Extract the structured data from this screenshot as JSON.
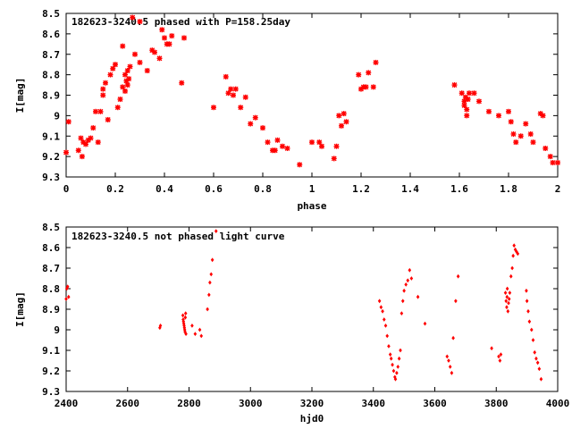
{
  "chart_data": [
    {
      "type": "scatter",
      "title": "182623-3240.5 phased with P=158.25day",
      "xlabel": "phase",
      "ylabel": "I[mag]",
      "xlim": [
        0,
        2
      ],
      "ylim": [
        9.3,
        8.5
      ],
      "y_inverted": true,
      "grid": false,
      "marker": "star",
      "color": "#ff0000",
      "x_ticks": [
        "0",
        "0.2",
        "0.4",
        "0.6",
        "0.8",
        "1",
        "1.2",
        "1.4",
        "1.6",
        "1.8",
        "2"
      ],
      "y_ticks": [
        "8.5",
        "8.6",
        "8.7",
        "8.8",
        "8.9",
        "9",
        "9.1",
        "9.2",
        "9.3"
      ],
      "series": [
        {
          "points": [
            [
              0.0,
              9.18
            ],
            [
              0.01,
              9.03
            ],
            [
              0.05,
              9.17
            ],
            [
              0.06,
              9.11
            ],
            [
              0.065,
              9.2
            ],
            [
              0.07,
              9.13
            ],
            [
              0.08,
              9.14
            ],
            [
              0.09,
              9.12
            ],
            [
              0.1,
              9.11
            ],
            [
              0.11,
              9.06
            ],
            [
              0.12,
              8.98
            ],
            [
              0.13,
              9.13
            ],
            [
              0.14,
              8.98
            ],
            [
              0.15,
              8.9
            ],
            [
              0.15,
              8.87
            ],
            [
              0.16,
              8.84
            ],
            [
              0.17,
              9.02
            ],
            [
              0.18,
              8.8
            ],
            [
              0.19,
              8.77
            ],
            [
              0.2,
              8.75
            ],
            [
              0.21,
              8.96
            ],
            [
              0.22,
              8.92
            ],
            [
              0.23,
              8.86
            ],
            [
              0.23,
              8.66
            ],
            [
              0.24,
              8.8
            ],
            [
              0.24,
              8.88
            ],
            [
              0.245,
              8.83
            ],
            [
              0.25,
              8.78
            ],
            [
              0.25,
              8.85
            ],
            [
              0.255,
              8.82
            ],
            [
              0.26,
              8.76
            ],
            [
              0.28,
              8.7
            ],
            [
              0.27,
              8.52
            ],
            [
              0.3,
              8.74
            ],
            [
              0.3,
              8.54
            ],
            [
              0.33,
              8.78
            ],
            [
              0.35,
              8.68
            ],
            [
              0.36,
              8.69
            ],
            [
              0.38,
              8.72
            ],
            [
              0.39,
              8.58
            ],
            [
              0.4,
              8.62
            ],
            [
              0.41,
              8.65
            ],
            [
              0.42,
              8.65
            ],
            [
              0.43,
              8.61
            ],
            [
              0.47,
              8.84
            ],
            [
              0.48,
              8.62
            ],
            [
              0.6,
              8.96
            ],
            [
              0.65,
              8.81
            ],
            [
              0.66,
              8.89
            ],
            [
              0.67,
              8.87
            ],
            [
              0.68,
              8.9
            ],
            [
              0.69,
              8.87
            ],
            [
              0.71,
              8.96
            ],
            [
              0.73,
              8.91
            ],
            [
              0.75,
              9.04
            ],
            [
              0.77,
              9.01
            ],
            [
              0.8,
              9.06
            ],
            [
              0.82,
              9.13
            ],
            [
              0.84,
              9.17
            ],
            [
              0.85,
              9.17
            ],
            [
              0.86,
              9.12
            ],
            [
              0.88,
              9.15
            ],
            [
              0.9,
              9.16
            ],
            [
              0.95,
              9.24
            ],
            [
              1.0,
              9.13
            ],
            [
              1.03,
              9.13
            ],
            [
              1.04,
              9.15
            ],
            [
              1.09,
              9.21
            ],
            [
              1.1,
              9.15
            ],
            [
              1.11,
              9.0
            ],
            [
              1.12,
              9.05
            ],
            [
              1.13,
              8.99
            ],
            [
              1.14,
              9.03
            ],
            [
              1.19,
              8.8
            ],
            [
              1.2,
              8.87
            ],
            [
              1.21,
              8.86
            ],
            [
              1.22,
              8.86
            ],
            [
              1.23,
              8.79
            ],
            [
              1.25,
              8.86
            ],
            [
              1.26,
              8.74
            ],
            [
              1.58,
              8.85
            ],
            [
              1.61,
              8.89
            ],
            [
              1.62,
              8.93
            ],
            [
              1.62,
              8.95
            ],
            [
              1.625,
              8.91
            ],
            [
              1.63,
              8.97
            ],
            [
              1.63,
              9.0
            ],
            [
              1.635,
              8.92
            ],
            [
              1.64,
              8.89
            ],
            [
              1.66,
              8.89
            ],
            [
              1.68,
              8.93
            ],
            [
              1.72,
              8.98
            ],
            [
              1.76,
              9.0
            ],
            [
              1.8,
              8.98
            ],
            [
              1.81,
              9.03
            ],
            [
              1.82,
              9.09
            ],
            [
              1.83,
              9.13
            ],
            [
              1.85,
              9.1
            ],
            [
              1.87,
              9.04
            ],
            [
              1.89,
              9.09
            ],
            [
              1.9,
              9.13
            ],
            [
              1.93,
              8.99
            ],
            [
              1.94,
              9.0
            ],
            [
              1.95,
              9.16
            ],
            [
              1.97,
              9.2
            ],
            [
              1.98,
              9.23
            ],
            [
              2.0,
              9.23
            ]
          ]
        }
      ]
    },
    {
      "type": "scatter",
      "title": "182623-3240.5 not phased light curve",
      "xlabel": "hjd0",
      "ylabel": "I[mag]",
      "xlim": [
        2400,
        4000
      ],
      "ylim": [
        9.3,
        8.5
      ],
      "y_inverted": true,
      "grid": false,
      "marker": "diamond",
      "color": "#ff0000",
      "x_ticks": [
        "2400",
        "2600",
        "2800",
        "3000",
        "3200",
        "3400",
        "3600",
        "3800",
        "4000"
      ],
      "y_ticks": [
        "8.5",
        "8.6",
        "8.7",
        "8.8",
        "8.9",
        "9",
        "9.1",
        "9.2",
        "9.3"
      ],
      "series": [
        {
          "points": [
            [
              2400,
              8.85
            ],
            [
              2402,
              8.8
            ],
            [
              2405,
              8.79
            ],
            [
              2408,
              8.84
            ],
            [
              2705,
              8.99
            ],
            [
              2707,
              8.98
            ],
            [
              2780,
              8.93
            ],
            [
              2781,
              8.95
            ],
            [
              2782,
              8.96
            ],
            [
              2783,
              8.97
            ],
            [
              2784,
              8.98
            ],
            [
              2785,
              8.99
            ],
            [
              2786,
              9.0
            ],
            [
              2787,
              9.01
            ],
            [
              2788,
              8.94
            ],
            [
              2789,
              8.92
            ],
            [
              2790,
              9.02
            ],
            [
              2810,
              8.98
            ],
            [
              2820,
              9.02
            ],
            [
              2835,
              9.0
            ],
            [
              2840,
              9.03
            ],
            [
              2860,
              8.9
            ],
            [
              2865,
              8.83
            ],
            [
              2868,
              8.77
            ],
            [
              2872,
              8.73
            ],
            [
              2876,
              8.66
            ],
            [
              2888,
              8.52
            ],
            [
              3420,
              8.86
            ],
            [
              3425,
              8.89
            ],
            [
              3430,
              8.91
            ],
            [
              3435,
              8.95
            ],
            [
              3440,
              8.98
            ],
            [
              3445,
              9.03
            ],
            [
              3450,
              9.08
            ],
            [
              3455,
              9.12
            ],
            [
              3458,
              9.14
            ],
            [
              3462,
              9.17
            ],
            [
              3466,
              9.2
            ],
            [
              3470,
              9.23
            ],
            [
              3472,
              9.24
            ],
            [
              3476,
              9.21
            ],
            [
              3480,
              9.18
            ],
            [
              3484,
              9.14
            ],
            [
              3488,
              9.1
            ],
            [
              3492,
              8.92
            ],
            [
              3496,
              8.86
            ],
            [
              3500,
              8.81
            ],
            [
              3506,
              8.78
            ],
            [
              3512,
              8.76
            ],
            [
              3518,
              8.71
            ],
            [
              3524,
              8.75
            ],
            [
              3545,
              8.84
            ],
            [
              3568,
              8.97
            ],
            [
              3640,
              9.13
            ],
            [
              3645,
              9.15
            ],
            [
              3650,
              9.18
            ],
            [
              3655,
              9.21
            ],
            [
              3660,
              9.04
            ],
            [
              3668,
              8.86
            ],
            [
              3676,
              8.74
            ],
            [
              3785,
              9.09
            ],
            [
              3808,
              9.13
            ],
            [
              3812,
              9.15
            ],
            [
              3815,
              9.12
            ],
            [
              3830,
              8.82
            ],
            [
              3832,
              8.86
            ],
            [
              3834,
              8.89
            ],
            [
              3835,
              8.84
            ],
            [
              3836,
              8.8
            ],
            [
              3838,
              8.91
            ],
            [
              3840,
              8.87
            ],
            [
              3842,
              8.85
            ],
            [
              3844,
              8.82
            ],
            [
              3848,
              8.74
            ],
            [
              3852,
              8.7
            ],
            [
              3855,
              8.64
            ],
            [
              3858,
              8.59
            ],
            [
              3862,
              8.61
            ],
            [
              3866,
              8.62
            ],
            [
              3870,
              8.63
            ],
            [
              3898,
              8.81
            ],
            [
              3900,
              8.86
            ],
            [
              3904,
              8.91
            ],
            [
              3908,
              8.96
            ],
            [
              3915,
              9.0
            ],
            [
              3920,
              9.05
            ],
            [
              3925,
              9.11
            ],
            [
              3930,
              9.14
            ],
            [
              3935,
              9.16
            ],
            [
              3940,
              9.19
            ],
            [
              3946,
              9.24
            ]
          ]
        }
      ]
    }
  ]
}
